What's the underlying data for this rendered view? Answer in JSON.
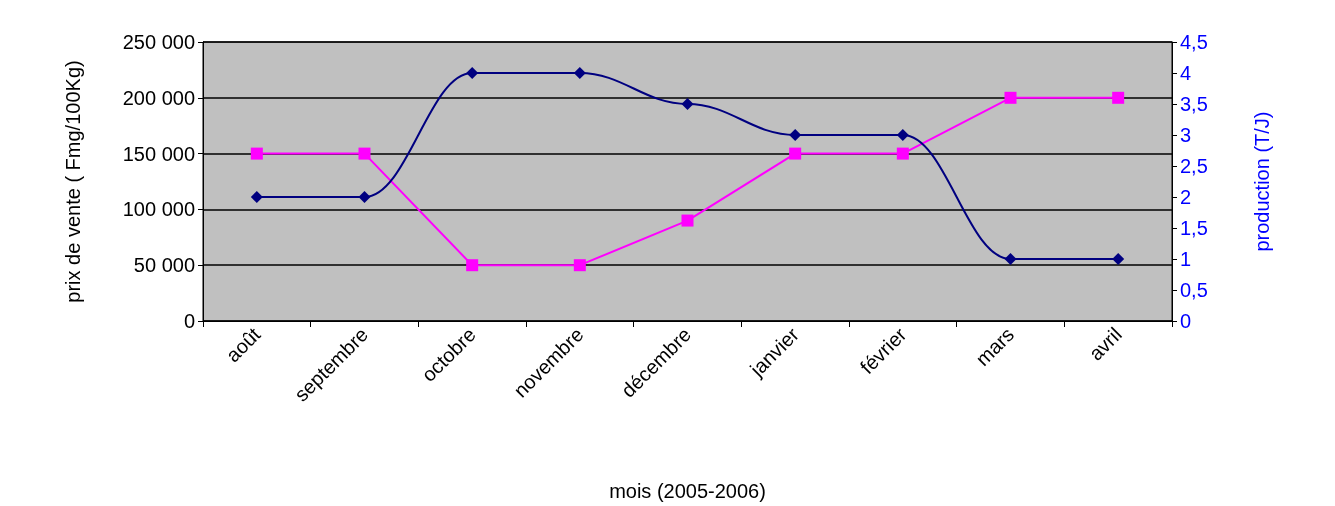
{
  "chart_data": {
    "type": "line",
    "xlabel": "mois (2005-2006)",
    "ylabel": "prix de vente ( Fmg/100Kg)",
    "y2label": "production (T/J)",
    "categories": [
      "août",
      "septembre",
      "octobre",
      "novembre",
      "décembre",
      "janvier",
      "février",
      "mars",
      "avril"
    ],
    "series": [
      {
        "color": "#ff00ff",
        "marker": "square",
        "values": [
          150000,
          150000,
          50000,
          50000,
          90000,
          150000,
          150000,
          200000,
          200000
        ]
      },
      {
        "color": "#000080",
        "marker": "diamond",
        "axis": "y2",
        "values": [
          2,
          2,
          4,
          4,
          3.5,
          3,
          3,
          1,
          1
        ]
      }
    ],
    "ylim": [
      0,
      250000
    ],
    "yticks": [
      0,
      {
        "value": 50000,
        "label": "50 000"
      },
      {
        "value": 100000,
        "label": "100 000"
      },
      {
        "value": 150000,
        "label": "150 000"
      },
      {
        "value": 200000,
        "label": "200 000"
      },
      {
        "value": 250000,
        "label": "250 000"
      }
    ],
    "y2lim": [
      0,
      4.5
    ],
    "y2ticks": [
      0,
      {
        "value": 0.5,
        "label": "0,5"
      },
      1,
      {
        "value": 1.5,
        "label": "1,5"
      },
      2,
      {
        "value": 2.5,
        "label": "2,5"
      },
      3,
      {
        "value": 3.5,
        "label": "3,5"
      },
      4,
      {
        "value": 4.5,
        "label": "4,5"
      }
    ],
    "grid": "y"
  }
}
